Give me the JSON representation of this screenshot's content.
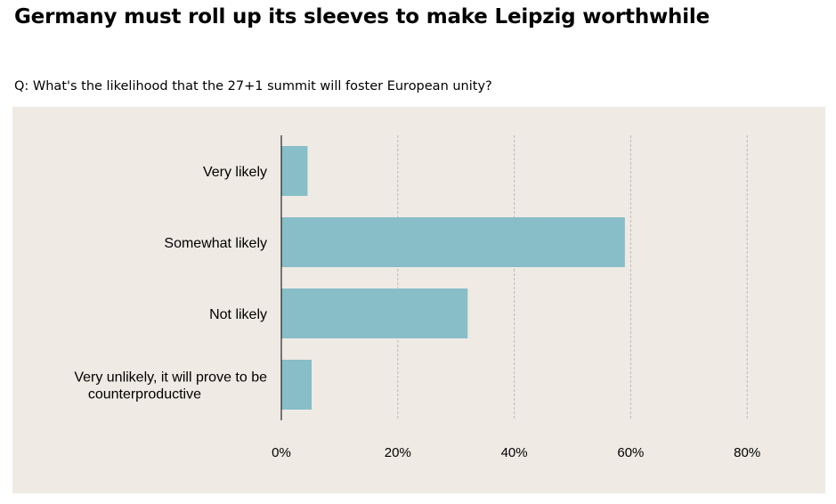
{
  "title": "Germany must roll up its sleeves to make Leipzig worthwhile",
  "question": "Q: What's the likelihood that the 27+1 summit will foster European unity?",
  "colors": {
    "panel_bg": "#efeae4",
    "bar": "#87bec8",
    "grid": "#b9b9b9",
    "axis": "#000000"
  },
  "chart_data": {
    "type": "bar",
    "orientation": "horizontal",
    "categories": [
      [
        "Very likely"
      ],
      [
        "Somewhat likely"
      ],
      [
        "Not likely"
      ],
      [
        "Very unlikely, it will prove to be",
        "counterproductive"
      ]
    ],
    "values": [
      4.5,
      59,
      32,
      5.2
    ],
    "xlim": [
      0,
      90
    ],
    "xticks": [
      0,
      20,
      40,
      60,
      80
    ],
    "xtick_labels": [
      "0%",
      "20%",
      "40%",
      "60%",
      "80%"
    ],
    "grid": "vertical-dashed",
    "legend": "none"
  }
}
